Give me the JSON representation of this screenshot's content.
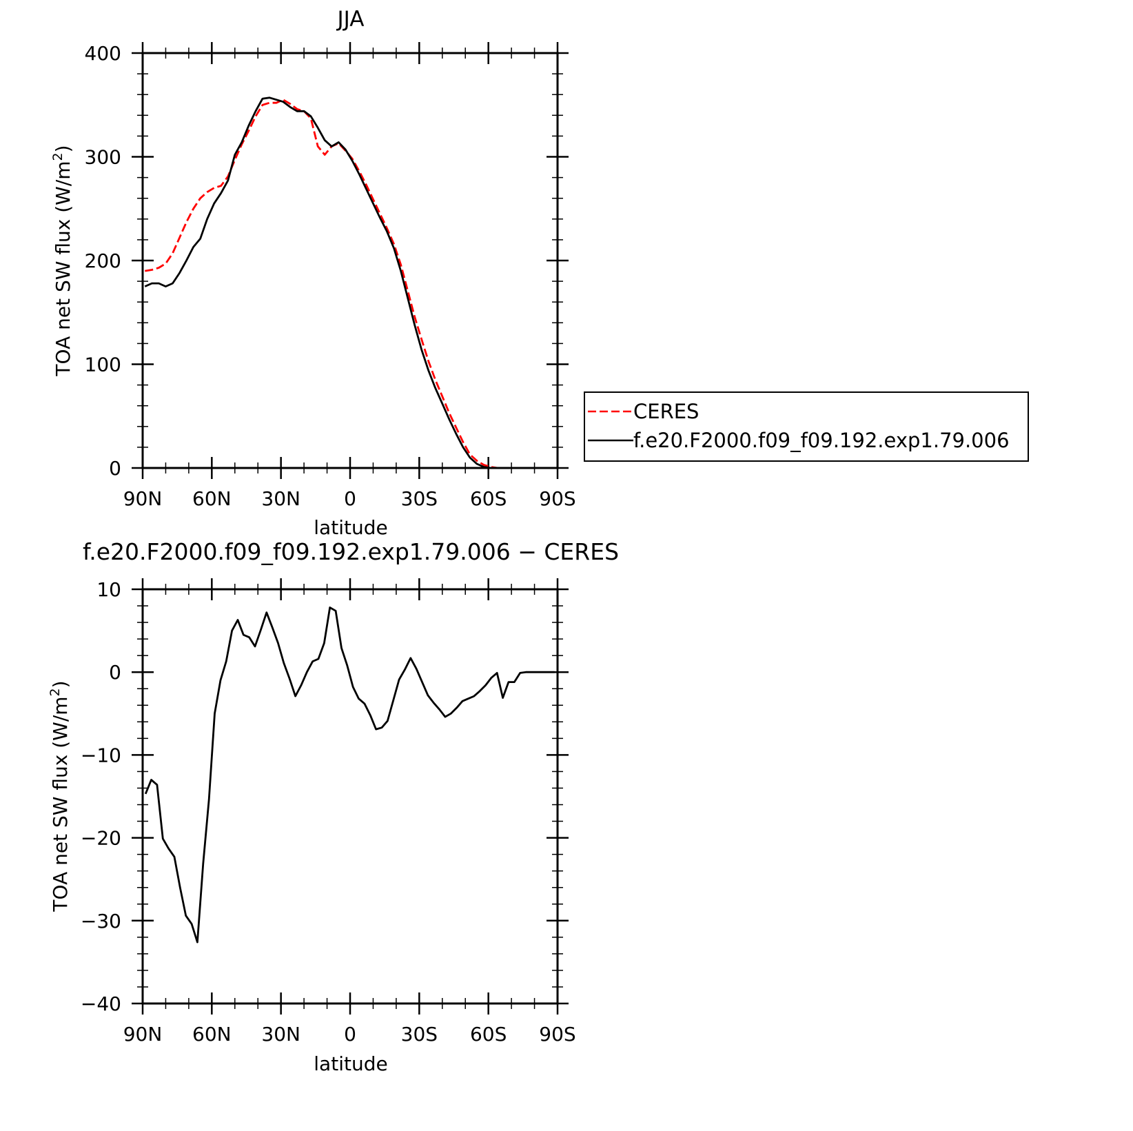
{
  "chart_data": [
    {
      "type": "line",
      "title": "JJA",
      "xlabel": "latitude",
      "ylabel": "TOA net SW flux (W/m",
      "ylabel_superscript": "2",
      "ylabel_close": ")",
      "xlim": [
        90,
        -90
      ],
      "ylim": [
        0,
        400
      ],
      "xticks": [
        90,
        60,
        30,
        0,
        -30,
        -60,
        -90
      ],
      "xtick_labels": [
        "90N",
        "60N",
        "30N",
        "0",
        "30S",
        "60S",
        "90S"
      ],
      "yticks": [
        0,
        100,
        200,
        300,
        400
      ],
      "ytick_labels": [
        "0",
        "100",
        "200",
        "300",
        "400"
      ],
      "series": [
        {
          "name": "CERES",
          "color": "#ff0000",
          "dash": "dashed",
          "x": [
            89,
            86,
            83,
            80,
            77,
            74,
            71,
            68,
            65,
            62,
            59,
            56,
            53,
            50,
            47,
            44,
            41,
            38,
            35,
            32,
            29,
            26,
            23,
            20,
            17,
            14,
            11,
            8,
            5,
            2,
            -1,
            -4,
            -7,
            -10,
            -13,
            -16,
            -19,
            -22,
            -25,
            -28,
            -31,
            -34,
            -37,
            -40,
            -43,
            -46,
            -49,
            -52,
            -55,
            -58,
            -61,
            -64,
            -67,
            -70,
            -73,
            -76,
            -79,
            -82,
            -85,
            -89
          ],
          "y": [
            190,
            191,
            193,
            197,
            207,
            222,
            237,
            250,
            260,
            266,
            270,
            272,
            281,
            297,
            312,
            325,
            339,
            350,
            352,
            352,
            355,
            351,
            346,
            344,
            337,
            310,
            302,
            310,
            313,
            306,
            298,
            286,
            273,
            259,
            245,
            231,
            216,
            196,
            171,
            146,
            124,
            103,
            85,
            69,
            53,
            39,
            25,
            13,
            7,
            3,
            1,
            0,
            0,
            0,
            0,
            0,
            0,
            0,
            0,
            0
          ]
        },
        {
          "name": "f.e20.F2000.f09_f09.192.exp1.79.006",
          "color": "#000000",
          "dash": "solid",
          "x": [
            89,
            86,
            83,
            80,
            77,
            74,
            71,
            68,
            65,
            62,
            59,
            56,
            53,
            50,
            47,
            44,
            41,
            38,
            35,
            32,
            29,
            26,
            23,
            20,
            17,
            14,
            11,
            8,
            5,
            2,
            -1,
            -4,
            -7,
            -10,
            -13,
            -16,
            -19,
            -22,
            -25,
            -28,
            -31,
            -34,
            -37,
            -40,
            -43,
            -46,
            -49,
            -52,
            -55,
            -58,
            -61,
            -64,
            -67,
            -70,
            -73,
            -76,
            -79,
            -82,
            -85,
            -89
          ],
          "y": [
            175,
            178,
            178,
            175,
            178,
            188,
            200,
            213,
            221,
            240,
            255,
            265,
            277,
            302,
            314,
            330,
            344,
            356,
            357,
            355,
            353,
            348,
            344,
            344,
            339,
            328,
            316,
            310,
            314,
            307,
            296,
            283,
            269,
            255,
            241,
            228,
            212,
            190,
            164,
            138,
            114,
            94,
            77,
            62,
            47,
            33,
            20,
            10,
            4,
            1,
            0,
            0,
            0,
            0,
            0,
            0,
            0,
            0,
            0,
            0
          ]
        }
      ],
      "legend": {
        "placement": "right",
        "entries": [
          "CERES",
          "f.e20.F2000.f09_f09.192.exp1.79.006"
        ]
      }
    },
    {
      "type": "line",
      "title": "f.e20.F2000.f09_f09.192.exp1.79.006 − CERES",
      "xlabel": "latitude",
      "ylabel": "TOA net SW flux (W/m",
      "ylabel_superscript": "2",
      "ylabel_close": ")",
      "xlim": [
        90,
        -90
      ],
      "ylim": [
        -40,
        10
      ],
      "xticks": [
        90,
        60,
        30,
        0,
        -30,
        -60,
        -90
      ],
      "xtick_labels": [
        "90N",
        "60N",
        "30N",
        "0",
        "30S",
        "60S",
        "90S"
      ],
      "yticks": [
        10,
        0,
        -10,
        -20,
        -30,
        -40
      ],
      "ytick_labels": [
        "10",
        "0",
        "−10",
        "−20",
        "−30",
        "−40"
      ],
      "series": [
        {
          "color": "#000000",
          "dash": "solid",
          "x": [
            88.75,
            86.25,
            83.75,
            81.25,
            78.75,
            76.25,
            73.75,
            71.25,
            68.75,
            66.25,
            63.75,
            61.25,
            58.75,
            56.25,
            53.75,
            51.25,
            48.75,
            46.25,
            43.75,
            41.25,
            38.75,
            36.25,
            33.75,
            31.25,
            28.75,
            26.25,
            23.75,
            21.25,
            18.75,
            16.25,
            13.75,
            11.25,
            8.75,
            6.25,
            3.75,
            1.25,
            -1.25,
            -3.75,
            -6.25,
            -8.75,
            -11.25,
            -13.75,
            -16.25,
            -18.75,
            -21.25,
            -23.75,
            -26.25,
            -28.75,
            -31.25,
            -33.75,
            -36.25,
            -38.75,
            -41.25,
            -43.75,
            -46.25,
            -48.75,
            -51.25,
            -53.75,
            -56.25,
            -58.75,
            -61.25,
            -63.75,
            -66.25,
            -68.75,
            -71.25,
            -73.75,
            -76.25,
            -78.75,
            -81.25,
            -83.75,
            -86.25,
            -88.75
          ],
          "y": [
            -14.7,
            -13.0,
            -13.6,
            -20.1,
            -21.3,
            -22.3,
            -26.0,
            -29.4,
            -30.4,
            -32.6,
            -23.1,
            -15.4,
            -5.0,
            -1.0,
            1.3,
            5.0,
            6.3,
            4.5,
            4.2,
            3.1,
            5.1,
            7.2,
            5.4,
            3.5,
            1.1,
            -0.8,
            -2.9,
            -1.6,
            0.0,
            1.3,
            1.6,
            3.5,
            7.8,
            7.4,
            2.9,
            0.8,
            -1.8,
            -3.2,
            -3.8,
            -5.2,
            -6.9,
            -6.7,
            -5.9,
            -3.4,
            -0.9,
            0.3,
            1.7,
            0.4,
            -1.2,
            -2.8,
            -3.7,
            -4.5,
            -5.4,
            -5.0,
            -4.3,
            -3.5,
            -3.2,
            -2.9,
            -2.3,
            -1.6,
            -0.7,
            -0.1,
            -3.1,
            -1.2,
            -1.2,
            -0.1,
            0.0,
            0.0,
            0.0,
            0.0,
            0.0,
            0.0
          ]
        }
      ]
    }
  ]
}
